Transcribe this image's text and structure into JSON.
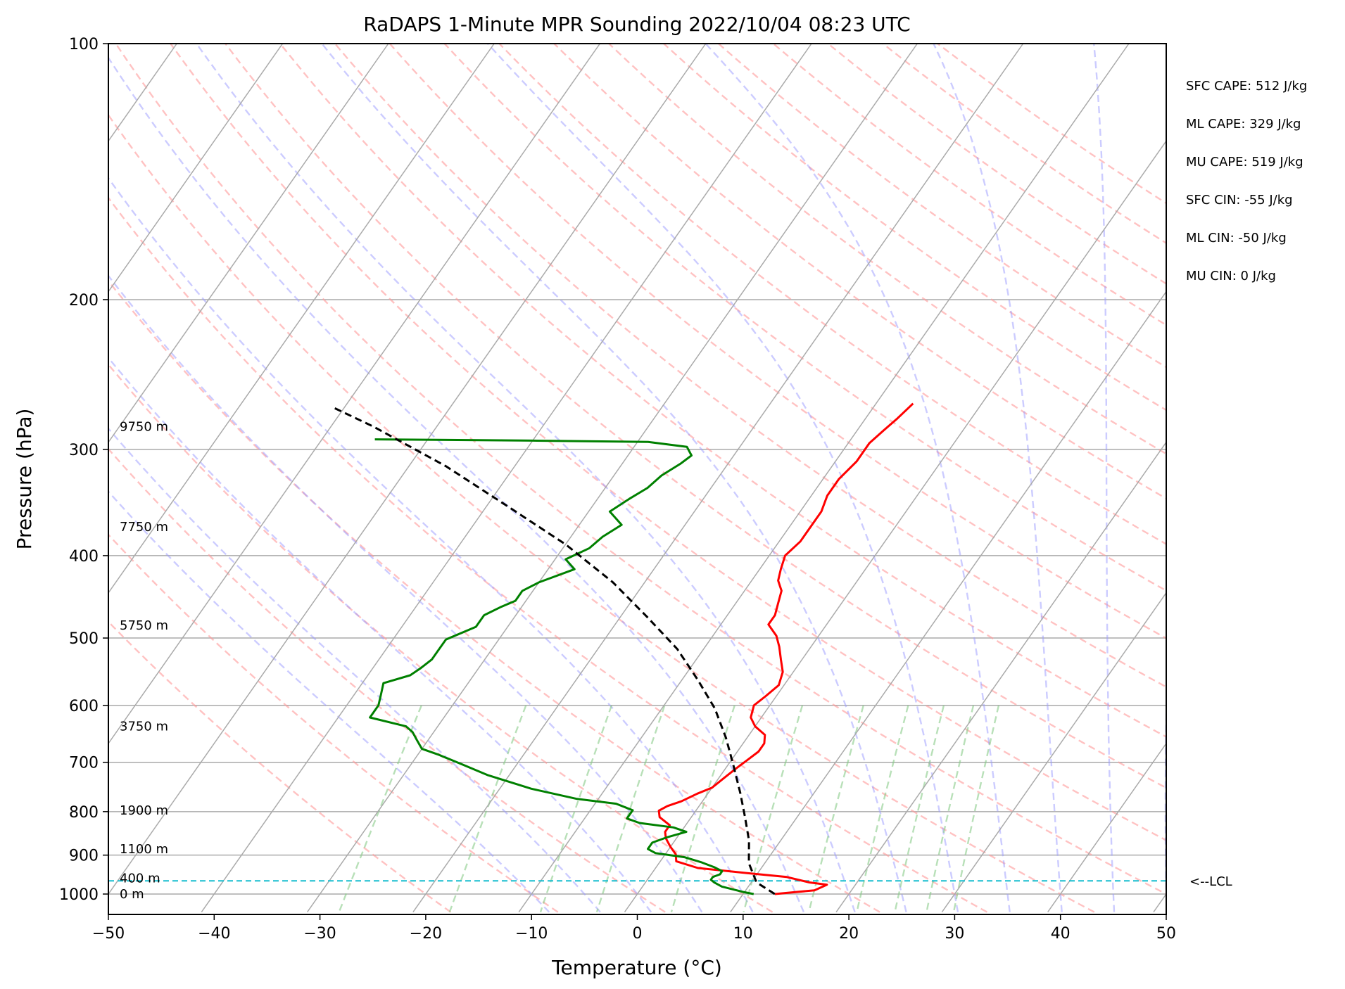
{
  "chart_data": {
    "type": "line",
    "subtype": "skew-t log-p sounding",
    "title": "RaDAPS 1-Minute MPR Sounding 2022/10/04 08:23 UTC",
    "xlabel": "Temperature (°C)",
    "ylabel": "Pressure (hPa)",
    "xlim": [
      -50,
      50
    ],
    "ylim": [
      1050,
      100
    ],
    "yscale": "log",
    "x_ticks": [
      "−50",
      "−40",
      "−30",
      "−20",
      "−10",
      "0",
      "10",
      "20",
      "30",
      "40",
      "50"
    ],
    "y_ticks": [
      "100",
      "200",
      "300",
      "400",
      "500",
      "600",
      "700",
      "800",
      "900",
      "1000"
    ],
    "height_labels": [
      {
        "text": "0 m",
        "p": 1000
      },
      {
        "text": "400 m",
        "p": 958
      },
      {
        "text": "1100 m",
        "p": 885
      },
      {
        "text": "1900 m",
        "p": 797
      },
      {
        "text": "3750 m",
        "p": 635
      },
      {
        "text": "5750 m",
        "p": 483
      },
      {
        "text": "7750 m",
        "p": 370
      },
      {
        "text": "9750 m",
        "p": 282
      }
    ],
    "lcl": {
      "label": "<--LCL",
      "p": 965
    },
    "series": [
      {
        "role": "temperature",
        "color": "#ff0000",
        "points": [
          [
            13.0,
            1000
          ],
          [
            16.5,
            990
          ],
          [
            17.3,
            975
          ],
          [
            15.5,
            969
          ],
          [
            13.0,
            955
          ],
          [
            9.0,
            945
          ],
          [
            4.0,
            932
          ],
          [
            1.5,
            915
          ],
          [
            1.0,
            898
          ],
          [
            0.0,
            880
          ],
          [
            -1.0,
            860
          ],
          [
            -1.5,
            845
          ],
          [
            -1.5,
            830
          ],
          [
            -3.0,
            812
          ],
          [
            -3.5,
            798
          ],
          [
            -3.0,
            788
          ],
          [
            -2.0,
            778
          ],
          [
            -1.0,
            762
          ],
          [
            0.0,
            750
          ],
          [
            0.5,
            730
          ],
          [
            1.0,
            712
          ],
          [
            1.5,
            696
          ],
          [
            2.0,
            680
          ],
          [
            2.0,
            665
          ],
          [
            1.5,
            650
          ],
          [
            0.0,
            635
          ],
          [
            -1.0,
            620
          ],
          [
            -1.5,
            600
          ],
          [
            -1.0,
            585
          ],
          [
            -0.5,
            568
          ],
          [
            -1.0,
            548
          ],
          [
            -2.0,
            530
          ],
          [
            -3.0,
            512
          ],
          [
            -4.0,
            497
          ],
          [
            -5.5,
            482
          ],
          [
            -5.5,
            470
          ],
          [
            -6.0,
            455
          ],
          [
            -6.5,
            440
          ],
          [
            -7.5,
            428
          ],
          [
            -8.0,
            415
          ],
          [
            -8.5,
            400
          ],
          [
            -8.0,
            385
          ],
          [
            -8.0,
            370
          ],
          [
            -8.0,
            355
          ],
          [
            -8.5,
            340
          ],
          [
            -8.5,
            325
          ],
          [
            -8.0,
            310
          ],
          [
            -8.0,
            295
          ],
          [
            -7.5,
            285
          ],
          [
            -7.0,
            276
          ],
          [
            -6.5,
            265
          ]
        ]
      },
      {
        "role": "dewpoint",
        "color": "#008000",
        "points": [
          [
            11.0,
            1000
          ],
          [
            10.0,
            995
          ],
          [
            7.5,
            980
          ],
          [
            6.5,
            969
          ],
          [
            6.0,
            962
          ],
          [
            6.0,
            955
          ],
          [
            6.5,
            948
          ],
          [
            6.5,
            940
          ],
          [
            5.5,
            930
          ],
          [
            4.0,
            918
          ],
          [
            2.0,
            905
          ],
          [
            -1.0,
            895
          ],
          [
            -2.0,
            885
          ],
          [
            -2.0,
            870
          ],
          [
            -1.0,
            858
          ],
          [
            0.5,
            845
          ],
          [
            -1.0,
            835
          ],
          [
            -4.5,
            825
          ],
          [
            -6.0,
            815
          ],
          [
            -6.0,
            797
          ],
          [
            -8.0,
            783
          ],
          [
            -12.0,
            773
          ],
          [
            -17.0,
            752
          ],
          [
            -22.0,
            725
          ],
          [
            -25.0,
            705
          ],
          [
            -28.0,
            686
          ],
          [
            -30.0,
            675
          ],
          [
            -31.0,
            660
          ],
          [
            -32.0,
            645
          ],
          [
            -33.0,
            635
          ],
          [
            -37.0,
            620
          ],
          [
            -37.0,
            600
          ],
          [
            -37.5,
            582
          ],
          [
            -38.0,
            565
          ],
          [
            -36.0,
            553
          ],
          [
            -35.5,
            543
          ],
          [
            -35.0,
            530
          ],
          [
            -35.0,
            517
          ],
          [
            -35.0,
            502
          ],
          [
            -33.0,
            485
          ],
          [
            -33.0,
            470
          ],
          [
            -32.0,
            460
          ],
          [
            -31.0,
            452
          ],
          [
            -31.0,
            440
          ],
          [
            -30.0,
            430
          ],
          [
            -27.5,
            415
          ],
          [
            -29.0,
            404
          ],
          [
            -27.5,
            392
          ],
          [
            -27.0,
            380
          ],
          [
            -26.0,
            368
          ],
          [
            -28.0,
            355
          ],
          [
            -27.0,
            343
          ],
          [
            -26.0,
            333
          ],
          [
            -25.5,
            322
          ],
          [
            -24.5,
            312
          ],
          [
            -24.0,
            305
          ],
          [
            -25.0,
            298
          ],
          [
            -29.0,
            294
          ],
          [
            -40.0,
            293
          ],
          [
            -55.0,
            292
          ]
        ]
      },
      {
        "role": "parcel",
        "color": "#000000",
        "points": [
          [
            13.0,
            1000
          ],
          [
            10.5,
            969
          ],
          [
            8.5,
            920
          ],
          [
            7.0,
            865
          ],
          [
            5.0,
            810
          ],
          [
            3.0,
            760
          ],
          [
            0.5,
            705
          ],
          [
            -2.0,
            655
          ],
          [
            -5.0,
            605
          ],
          [
            -8.5,
            560
          ],
          [
            -12.5,
            515
          ],
          [
            -17.5,
            472
          ],
          [
            -23.0,
            430
          ],
          [
            -30.0,
            388
          ],
          [
            -38.0,
            350
          ],
          [
            -46.5,
            314
          ],
          [
            -56.0,
            282
          ],
          [
            -61.0,
            268
          ]
        ]
      }
    ],
    "stats": [
      "SFC CAPE: 512 J/kg",
      "ML CAPE: 329 J/kg",
      "MU CAPE: 519 J/kg",
      "SFC CIN: -55 J/kg",
      "ML CIN: -50 J/kg",
      "MU CIN: 0 J/kg"
    ],
    "colors": {
      "isotherm": "#aaaaaa",
      "dry_adiabat": "#ff9999",
      "moist_adiabat": "#9999ff",
      "mixing_ratio": "#88cc88",
      "lcl_line": "#17becf"
    }
  }
}
